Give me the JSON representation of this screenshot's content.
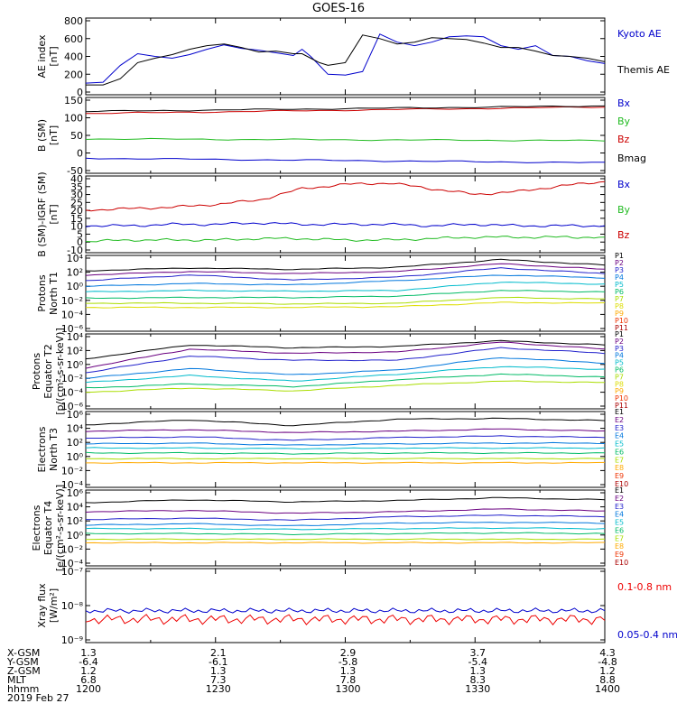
{
  "title": "GOES-16",
  "panels": [
    {
      "id": "ae",
      "ylabel": [
        "AE index",
        "[nT]"
      ],
      "yticks": [
        "800",
        "600",
        "400",
        "200",
        "0"
      ],
      "legend": [
        {
          "text": "Kyoto AE",
          "color": "#0000cc"
        },
        {
          "text": "Themis AE",
          "color": "#000000"
        }
      ]
    },
    {
      "id": "bsm",
      "ylabel": [
        "B (SM)",
        "[nT]"
      ],
      "yticks": [
        "150",
        "100",
        "50",
        "0",
        "-50"
      ],
      "legend": [
        {
          "text": "Bx",
          "color": "#0000cc"
        },
        {
          "text": "By",
          "color": "#22bb22"
        },
        {
          "text": "Bz",
          "color": "#cc0000"
        },
        {
          "text": "Bmag",
          "color": "#000000"
        }
      ]
    },
    {
      "id": "bigrf",
      "ylabel": [
        "B (SM)-IGRF (SM)",
        "[nT]"
      ],
      "yticks": [
        "40",
        "35",
        "30",
        "25",
        "20",
        "15",
        "10",
        "5",
        "0",
        "-10"
      ],
      "legend": [
        {
          "text": "Bx",
          "color": "#0000cc"
        },
        {
          "text": "By",
          "color": "#22bb22"
        },
        {
          "text": "Bz",
          "color": "#cc0000"
        }
      ]
    },
    {
      "id": "pn",
      "ylabel": [
        "Protons",
        "North T1"
      ],
      "yticks": [
        "10⁴",
        "10²",
        "10⁰",
        "10⁻²",
        "10⁻⁴",
        "10⁻⁶"
      ],
      "legend": [
        {
          "text": "P1",
          "color": "#000000"
        },
        {
          "text": "P2",
          "color": "#6a0080"
        },
        {
          "text": "P3",
          "color": "#2222cc"
        },
        {
          "text": "P4",
          "color": "#0077dd"
        },
        {
          "text": "P5",
          "color": "#00bbcc"
        },
        {
          "text": "P6",
          "color": "#00bb66"
        },
        {
          "text": "P7",
          "color": "#aadd00"
        },
        {
          "text": "P8",
          "color": "#dddd00"
        },
        {
          "text": "P9",
          "color": "#ffaa00"
        },
        {
          "text": "P10",
          "color": "#ee3300"
        },
        {
          "text": "P11",
          "color": "#aa0000"
        }
      ]
    },
    {
      "id": "pe",
      "ylabel": [
        "Protons",
        "Equator T2",
        "[p/(cm²-s-sr-keV)]"
      ],
      "yticks": [
        "10⁴",
        "10²",
        "10⁰",
        "10⁻²",
        "10⁻⁴",
        "10⁻⁶"
      ],
      "legend": [
        {
          "text": "P1",
          "color": "#000000"
        },
        {
          "text": "P2",
          "color": "#6a0080"
        },
        {
          "text": "P3",
          "color": "#2222cc"
        },
        {
          "text": "P4",
          "color": "#0077dd"
        },
        {
          "text": "P5",
          "color": "#00bbcc"
        },
        {
          "text": "P6",
          "color": "#00bb66"
        },
        {
          "text": "P7",
          "color": "#aadd00"
        },
        {
          "text": "P8",
          "color": "#dddd00"
        },
        {
          "text": "P9",
          "color": "#ffaa00"
        },
        {
          "text": "P10",
          "color": "#ee3300"
        },
        {
          "text": "P11",
          "color": "#aa0000"
        }
      ]
    },
    {
      "id": "en",
      "ylabel": [
        "Electrons",
        "North T3"
      ],
      "yticks": [
        "10⁶",
        "10⁴",
        "10²",
        "10⁰",
        "10⁻²",
        "10⁻⁴"
      ],
      "legend": [
        {
          "text": "E1",
          "color": "#000000"
        },
        {
          "text": "E2",
          "color": "#6a0080"
        },
        {
          "text": "E3",
          "color": "#2222cc"
        },
        {
          "text": "E4",
          "color": "#0077dd"
        },
        {
          "text": "E5",
          "color": "#00bbcc"
        },
        {
          "text": "E6",
          "color": "#00bb66"
        },
        {
          "text": "E7",
          "color": "#aadd00"
        },
        {
          "text": "E8",
          "color": "#ffaa00"
        },
        {
          "text": "E9",
          "color": "#ee3300"
        },
        {
          "text": "E10",
          "color": "#aa0000"
        }
      ]
    },
    {
      "id": "ee",
      "ylabel": [
        "Electrons",
        "Equator T4",
        "[e/(cm²-s-sr-keV)]"
      ],
      "yticks": [
        "10⁶",
        "10⁴",
        "10²",
        "10⁰",
        "10⁻²",
        "10⁻⁴"
      ],
      "legend": [
        {
          "text": "E1",
          "color": "#000000"
        },
        {
          "text": "E2",
          "color": "#6a0080"
        },
        {
          "text": "E3",
          "color": "#2222cc"
        },
        {
          "text": "E4",
          "color": "#0077dd"
        },
        {
          "text": "E5",
          "color": "#00bbcc"
        },
        {
          "text": "E6",
          "color": "#00bb66"
        },
        {
          "text": "E7",
          "color": "#aadd00"
        },
        {
          "text": "E8",
          "color": "#ffaa00"
        },
        {
          "text": "E9",
          "color": "#ee3300"
        },
        {
          "text": "E10",
          "color": "#aa0000"
        }
      ]
    },
    {
      "id": "xray",
      "ylabel": [
        "Xray flux",
        "[W/m²]"
      ],
      "yticks": [
        "10⁻⁷",
        "10⁻⁸",
        "10⁻⁹"
      ],
      "legend": [
        {
          "text": "0.1-0.8 nm",
          "color": "#ee0000"
        },
        {
          "text": "0.05-0.4 nm",
          "color": "#0000cc"
        }
      ]
    }
  ],
  "xaxis": {
    "row_labels": [
      "X-GSM",
      "Y-GSM",
      "Z-GSM",
      "MLT",
      "hhmm",
      "2019 Feb 27"
    ],
    "ticks": [
      {
        "vals": [
          "1.3",
          "-6.4",
          "1.2",
          "6.8",
          "1200"
        ]
      },
      {
        "vals": [
          "2.1",
          "-6.1",
          "1.3",
          "7.3",
          "1230"
        ]
      },
      {
        "vals": [
          "2.9",
          "-5.8",
          "1.3",
          "7.8",
          "1300"
        ]
      },
      {
        "vals": [
          "3.7",
          "-5.4",
          "1.3",
          "8.3",
          "1330"
        ]
      },
      {
        "vals": [
          "4.3",
          "-4.8",
          "1.2",
          "8.8",
          "1400"
        ]
      }
    ]
  },
  "chart_data": [
    {
      "type": "line",
      "panel": "ae",
      "ylim": [
        0,
        800
      ],
      "x_minutes": [
        0,
        8,
        16,
        24,
        32,
        40,
        48,
        56,
        64,
        72,
        80,
        88,
        96,
        100,
        104,
        108,
        112,
        120,
        128,
        136,
        144,
        152,
        160,
        168,
        176,
        184,
        192,
        200,
        208,
        216,
        224,
        232,
        240
      ],
      "series": [
        {
          "name": "Kyoto AE",
          "color": "#0000cc",
          "values": [
            100,
            110,
            300,
            430,
            400,
            380,
            420,
            480,
            530,
            490,
            470,
            440,
            410,
            480,
            400,
            300,
            200,
            190,
            230,
            650,
            560,
            520,
            560,
            620,
            630,
            620,
            520,
            480,
            520,
            410,
            400,
            350,
            320
          ]
        },
        {
          "name": "Themis AE",
          "color": "#000000",
          "values": [
            80,
            80,
            150,
            330,
            380,
            420,
            480,
            520,
            540,
            500,
            450,
            460,
            430,
            430,
            380,
            330,
            300,
            330,
            640,
            600,
            540,
            560,
            610,
            600,
            590,
            550,
            500,
            500,
            460,
            410,
            400,
            380,
            340
          ]
        }
      ]
    },
    {
      "type": "line",
      "panel": "bsm",
      "ylim": [
        -50,
        150
      ],
      "series": [
        {
          "name": "Bx",
          "color": "#0000cc",
          "start": -15,
          "end": -28
        },
        {
          "name": "By",
          "color": "#22bb22",
          "start": 40,
          "end": 35
        },
        {
          "name": "Bz",
          "color": "#cc0000",
          "start": 112,
          "end": 131
        },
        {
          "name": "Bmag",
          "color": "#000000",
          "start": 118,
          "end": 134
        }
      ]
    },
    {
      "type": "line",
      "panel": "bigrf",
      "ylim": [
        -10,
        40
      ],
      "x_minutes": [
        0,
        20,
        40,
        60,
        80,
        100,
        120,
        140,
        160,
        180,
        200,
        220,
        240
      ],
      "series": [
        {
          "name": "Bz",
          "color": "#cc0000",
          "values": [
            18,
            19,
            20,
            22,
            25,
            33,
            36,
            37,
            33,
            29,
            31,
            35,
            38
          ]
        },
        {
          "name": "Bx",
          "color": "#0000cc",
          "values": [
            7,
            7,
            8,
            8,
            9,
            8,
            8,
            8,
            7,
            8,
            7,
            7,
            7
          ]
        },
        {
          "name": "By",
          "color": "#22bb22",
          "values": [
            -4,
            -3,
            -3,
            -3,
            -2,
            -2,
            -3,
            -3,
            -2,
            -1,
            -1,
            -1,
            -1
          ]
        }
      ]
    },
    {
      "type": "line",
      "panel": "pn",
      "ylim_log10": [
        -6,
        4
      ],
      "series": [
        {
          "name": "P1",
          "color": "#000000",
          "values": [
            2.2,
            2.6,
            2.4,
            2.7,
            3.8,
            3.0
          ]
        },
        {
          "name": "P2",
          "color": "#6a0080",
          "values": [
            1.6,
            2.1,
            1.8,
            2.1,
            3.2,
            2.4
          ]
        },
        {
          "name": "P3",
          "color": "#2222cc",
          "values": [
            0.8,
            1.6,
            0.9,
            1.3,
            2.6,
            1.8
          ]
        },
        {
          "name": "P4",
          "color": "#0077dd",
          "values": [
            0.0,
            0.4,
            0.2,
            0.8,
            1.6,
            1.2
          ]
        },
        {
          "name": "P5",
          "color": "#00bbcc",
          "values": [
            -0.8,
            -0.6,
            -0.7,
            -0.6,
            0.6,
            0.3
          ]
        },
        {
          "name": "P6",
          "color": "#00bb66",
          "values": [
            -1.7,
            -1.6,
            -1.6,
            -1.4,
            -0.6,
            -0.8
          ]
        },
        {
          "name": "P7",
          "color": "#aadd00",
          "values": [
            -2.4,
            -2.4,
            -2.5,
            -2.4,
            -1.6,
            -1.8
          ]
        },
        {
          "name": "P8",
          "color": "#dddd00",
          "values": [
            -3.0,
            -3.0,
            -3.0,
            -2.9,
            -2.3,
            -2.4
          ]
        }
      ]
    },
    {
      "type": "line",
      "panel": "pe",
      "ylim_log10": [
        -6,
        4
      ],
      "series": [
        {
          "name": "P1",
          "color": "#000000",
          "values": [
            0.8,
            2.8,
            2.4,
            2.6,
            3.4,
            2.8
          ]
        },
        {
          "name": "P2",
          "color": "#6a0080",
          "values": [
            -0.5,
            2.2,
            1.6,
            1.8,
            3.2,
            2.2
          ]
        },
        {
          "name": "P3",
          "color": "#2222cc",
          "values": [
            -1.2,
            1.2,
            0.6,
            0.6,
            2.4,
            1.6
          ]
        },
        {
          "name": "P4",
          "color": "#0077dd",
          "values": [
            -2.0,
            -0.6,
            -1.5,
            -0.8,
            1.0,
            0.2
          ]
        },
        {
          "name": "P5",
          "color": "#00bbcc",
          "values": [
            -2.6,
            -1.6,
            -2.4,
            -1.4,
            -0.3,
            -0.7
          ]
        },
        {
          "name": "P6",
          "color": "#00bb66",
          "values": [
            -3.4,
            -2.8,
            -3.2,
            -2.2,
            -1.4,
            -1.8
          ]
        },
        {
          "name": "P7",
          "color": "#aadd00",
          "values": [
            -4.0,
            -3.4,
            -3.8,
            -3.0,
            -2.4,
            -2.6
          ]
        }
      ]
    },
    {
      "type": "line",
      "panel": "en",
      "ylim_log10": [
        -4,
        6
      ],
      "series": [
        {
          "name": "E1",
          "color": "#000000",
          "values": [
            4.5,
            5.2,
            4.4,
            5.3,
            5.4,
            5.1
          ]
        },
        {
          "name": "E2",
          "color": "#6a0080",
          "values": [
            3.6,
            3.8,
            3.4,
            3.6,
            3.9,
            3.6
          ]
        },
        {
          "name": "E3",
          "color": "#2222cc",
          "values": [
            2.6,
            2.8,
            2.3,
            2.7,
            2.9,
            2.7
          ]
        },
        {
          "name": "E4",
          "color": "#0077dd",
          "values": [
            1.8,
            1.9,
            1.6,
            1.8,
            1.9,
            1.9
          ]
        },
        {
          "name": "E5",
          "color": "#00bbcc",
          "values": [
            1.2,
            1.2,
            1.1,
            1.2,
            1.2,
            1.2
          ]
        },
        {
          "name": "E6",
          "color": "#00bb66",
          "values": [
            0.5,
            0.5,
            0.4,
            0.5,
            0.5,
            0.5
          ]
        },
        {
          "name": "E7",
          "color": "#aadd00",
          "values": [
            -0.3,
            -0.3,
            -0.3,
            -0.3,
            -0.3,
            -0.3
          ]
        },
        {
          "name": "E8",
          "color": "#ffaa00",
          "values": [
            -0.9,
            -0.9,
            -0.9,
            -0.9,
            -0.9,
            -0.9
          ]
        }
      ]
    },
    {
      "type": "line",
      "panel": "ee",
      "ylim_log10": [
        -4,
        6
      ],
      "series": [
        {
          "name": "E1",
          "color": "#000000",
          "values": [
            4.6,
            5.0,
            4.7,
            4.9,
            5.3,
            5.0
          ]
        },
        {
          "name": "E2",
          "color": "#6a0080",
          "values": [
            3.3,
            3.5,
            3.1,
            3.3,
            3.7,
            3.4
          ]
        },
        {
          "name": "E3",
          "color": "#2222cc",
          "values": [
            2.2,
            2.4,
            2.1,
            2.6,
            2.8,
            2.6
          ]
        },
        {
          "name": "E4",
          "color": "#0077dd",
          "values": [
            1.4,
            1.6,
            1.3,
            1.7,
            1.8,
            1.7
          ]
        },
        {
          "name": "E5",
          "color": "#00bbcc",
          "values": [
            0.9,
            0.9,
            0.8,
            0.9,
            1.0,
            0.9
          ]
        },
        {
          "name": "E6",
          "color": "#00bb66",
          "values": [
            0.2,
            0.2,
            0.1,
            0.2,
            0.3,
            0.2
          ]
        },
        {
          "name": "E7",
          "color": "#aadd00",
          "values": [
            -0.6,
            -0.6,
            -0.6,
            -0.6,
            -0.6,
            -0.6
          ]
        },
        {
          "name": "E8",
          "color": "#ffaa00",
          "values": [
            -1.1,
            -1.1,
            -1.1,
            -1.1,
            -1.1,
            -1.1
          ]
        }
      ]
    },
    {
      "type": "line",
      "panel": "xray",
      "ylim_log10": [
        -9,
        -7
      ],
      "series": [
        {
          "name": "0.05-0.4 nm",
          "color": "#0000cc",
          "level": -8.15
        },
        {
          "name": "0.1-0.8 nm",
          "color": "#ee0000",
          "level": -8.4
        }
      ]
    }
  ]
}
